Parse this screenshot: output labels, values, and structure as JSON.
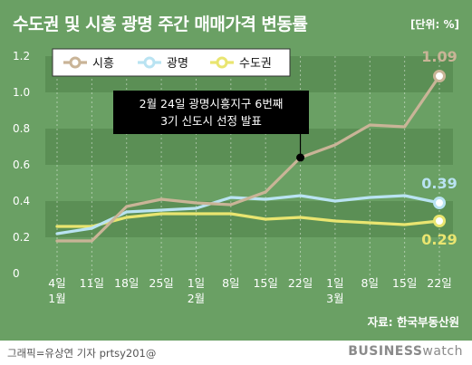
{
  "header": {
    "title": "수도권 및 시흥 광명 주간 매매가격 변동률",
    "unit": "[단위: %]"
  },
  "source": "자료: 한국부동산원",
  "footer": {
    "credit": "그래픽=유상연 기자 prtsy201@",
    "brand_bold": "BUSINESS",
    "brand_thin": "watch"
  },
  "colors": {
    "background": "#6aa064",
    "band": "#5b8f55",
    "siheung": "#c9b497",
    "gwangmyeong": "#b9e3f2",
    "capital": "#e9e570",
    "annotation_bg": "#000000"
  },
  "annotation": {
    "line1": "2월 24일 광명시흥지구 6번째",
    "line2": "3기 신도시 선정 발표",
    "at_index": 7,
    "series": "시흥"
  },
  "chart_data": {
    "type": "line",
    "title": "수도권 및 시흥 광명 주간 매매가격 변동률",
    "ylabel": "",
    "xlabel": "",
    "ylim": [
      0,
      1.2
    ],
    "yticks": [
      "0",
      "0.2",
      "0.4",
      "0.6",
      "0.8",
      "1.0",
      "1.2"
    ],
    "x": [
      "4일",
      "11일",
      "18일",
      "25일",
      "1일",
      "8일",
      "15일",
      "22일",
      "1일",
      "8일",
      "15일",
      "22일"
    ],
    "x_month_labels": {
      "0": "1월",
      "4": "2월",
      "8": "3월"
    },
    "legend_position": "top-left",
    "series": [
      {
        "name": "시흥",
        "values": [
          0.18,
          0.18,
          0.37,
          0.41,
          0.39,
          0.38,
          0.45,
          0.64,
          0.71,
          0.82,
          0.81,
          1.09
        ],
        "end_label": "1.09"
      },
      {
        "name": "광명",
        "values": [
          0.22,
          0.25,
          0.34,
          0.35,
          0.36,
          0.42,
          0.41,
          0.43,
          0.4,
          0.42,
          0.43,
          0.39
        ],
        "end_label": "0.39"
      },
      {
        "name": "수도권",
        "values": [
          0.26,
          0.26,
          0.31,
          0.33,
          0.33,
          0.33,
          0.3,
          0.31,
          0.29,
          0.28,
          0.27,
          0.29
        ],
        "end_label": "0.29"
      }
    ]
  }
}
